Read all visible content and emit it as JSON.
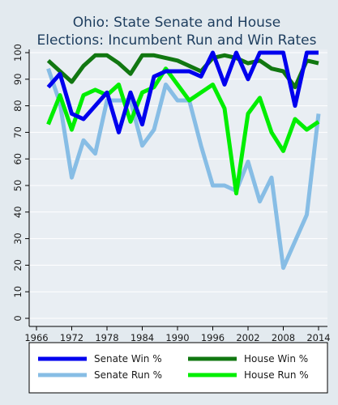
{
  "chart_data": {
    "type": "line",
    "title_lines": [
      "Ohio: State Senate and House",
      "Elections: Incumbent Run and Win Rates"
    ],
    "xlabel": "",
    "ylabel": "",
    "xlim": [
      1966,
      2014
    ],
    "ylim": [
      0,
      100
    ],
    "x_ticks": [
      1966,
      1972,
      1978,
      1984,
      1990,
      1996,
      2002,
      2008,
      2014
    ],
    "y_ticks": [
      0,
      10,
      20,
      30,
      40,
      50,
      60,
      70,
      80,
      90,
      100
    ],
    "grid": true,
    "legend_position": "bottom",
    "series": [
      {
        "name": "Senate Win %",
        "color": "#0000ee",
        "x": [
          1968,
          1970,
          1972,
          1974,
          1976,
          1978,
          1980,
          1982,
          1984,
          1986,
          1988,
          1990,
          1992,
          1994,
          1996,
          1998,
          2000,
          2002,
          2004,
          2006,
          2008,
          2010,
          2012,
          2014
        ],
        "values": [
          87,
          92,
          77,
          75,
          80,
          85,
          70,
          85,
          73,
          91,
          93,
          93,
          93,
          91,
          100,
          88,
          100,
          90,
          100,
          100,
          100,
          80,
          100,
          100
        ]
      },
      {
        "name": "Senate Run %",
        "color": "#87bde5",
        "x": [
          1968,
          1970,
          1972,
          1974,
          1976,
          1978,
          1980,
          1982,
          1984,
          1986,
          1988,
          1990,
          1992,
          1994,
          1996,
          1998,
          2000,
          2002,
          2004,
          2006,
          2008,
          2010,
          2012,
          2014
        ],
        "values": [
          94,
          81,
          53,
          67,
          62,
          82,
          82,
          82,
          65,
          71,
          88,
          82,
          82,
          65,
          50,
          50,
          48,
          59,
          44,
          53,
          19,
          29,
          39,
          77
        ]
      },
      {
        "name": "House Win %",
        "color": "#117711",
        "x": [
          1968,
          1970,
          1972,
          1974,
          1976,
          1978,
          1980,
          1982,
          1984,
          1986,
          1988,
          1990,
          1992,
          1994,
          1996,
          1998,
          2000,
          2002,
          2004,
          2006,
          2008,
          2010,
          2012,
          2014
        ],
        "values": [
          97,
          93,
          89,
          95,
          99,
          99,
          96,
          92,
          99,
          99,
          98,
          97,
          95,
          93,
          98,
          99,
          98,
          96,
          97,
          94,
          93,
          87,
          97,
          96
        ]
      },
      {
        "name": "House Run %",
        "color": "#00ee00",
        "x": [
          1968,
          1970,
          1972,
          1974,
          1976,
          1978,
          1980,
          1982,
          1984,
          1986,
          1988,
          1990,
          1992,
          1994,
          1996,
          1998,
          2000,
          2002,
          2004,
          2006,
          2008,
          2010,
          2012,
          2014
        ],
        "values": [
          73,
          84,
          71,
          84,
          86,
          84,
          88,
          74,
          85,
          87,
          94,
          88,
          82,
          85,
          88,
          79,
          47,
          77,
          83,
          70,
          63,
          75,
          71,
          74
        ]
      }
    ],
    "legend_order": [
      0,
      2,
      1,
      3
    ]
  }
}
